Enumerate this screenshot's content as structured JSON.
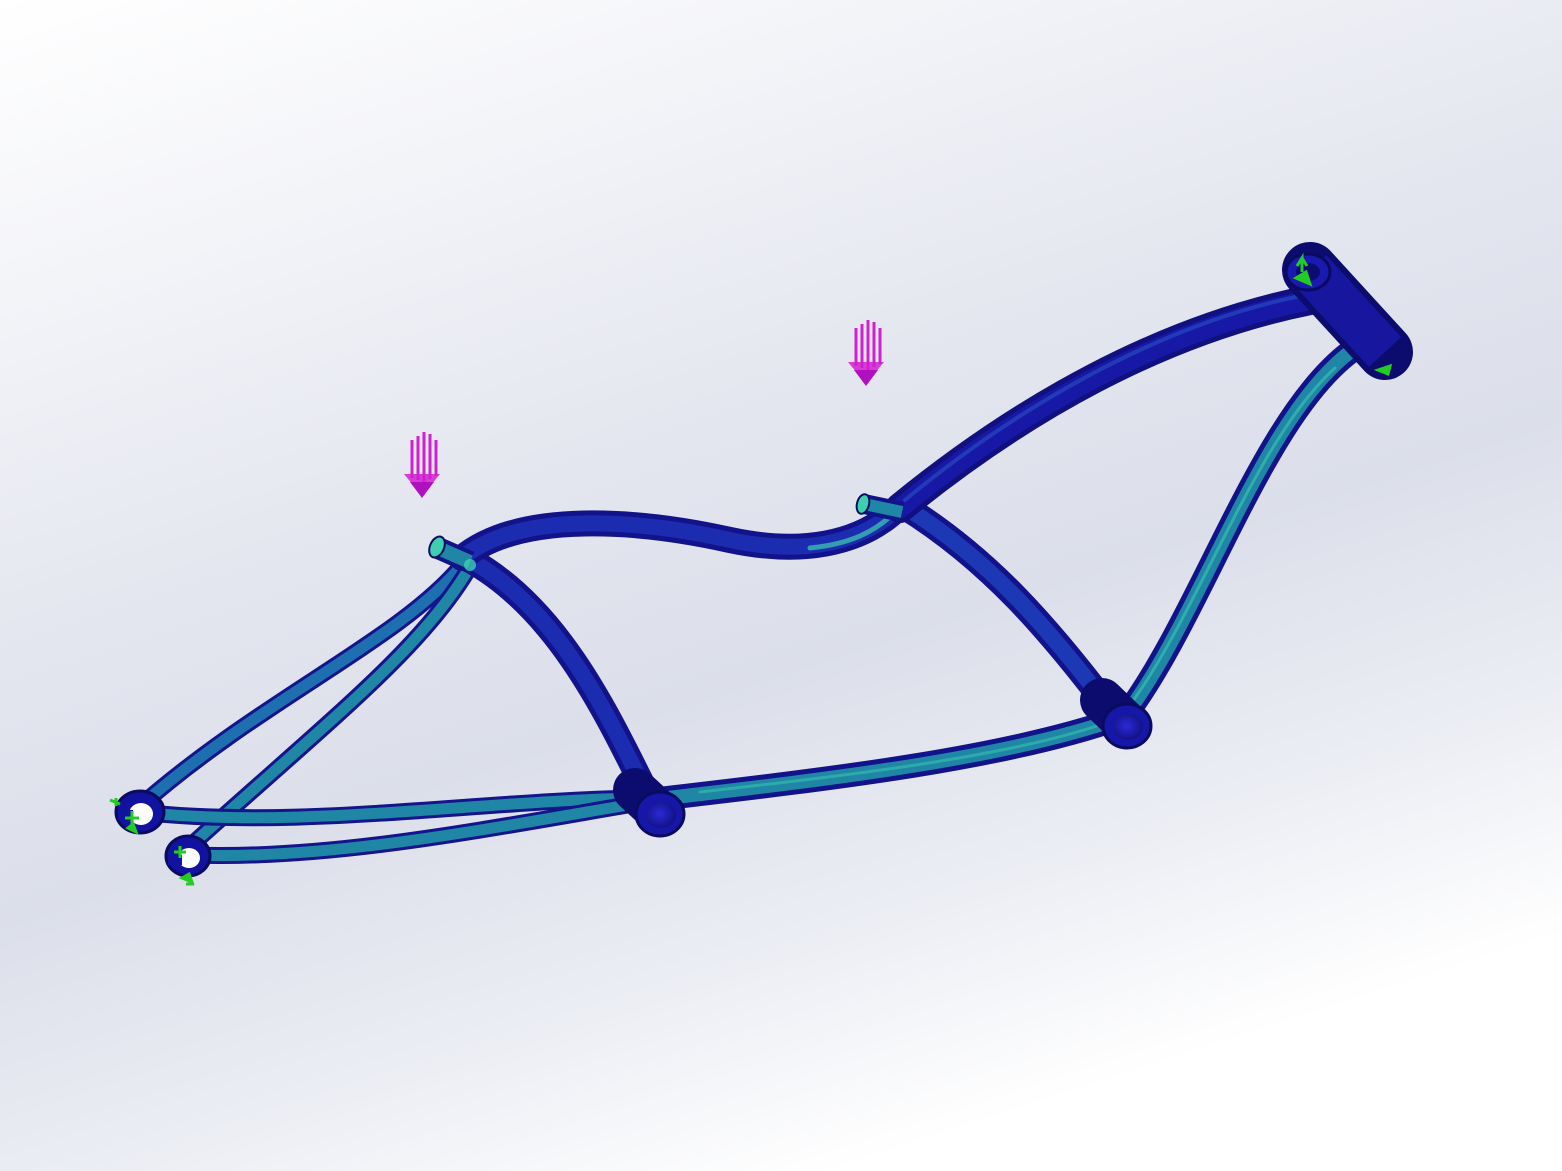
{
  "viewport": {
    "background_top": "#ffffff",
    "background_mid": "#dcdfea",
    "background_bottom": "#ffffff"
  },
  "model": {
    "colors": {
      "low_stress": "#1a1aa8",
      "mid_stress": "#1f86a6",
      "high_stress": "#3ccfb0",
      "fixture": "#22cc22",
      "load_arrow": "#d020d0"
    },
    "icons": [
      "load-arrow-icon",
      "fixture-icon"
    ]
  }
}
